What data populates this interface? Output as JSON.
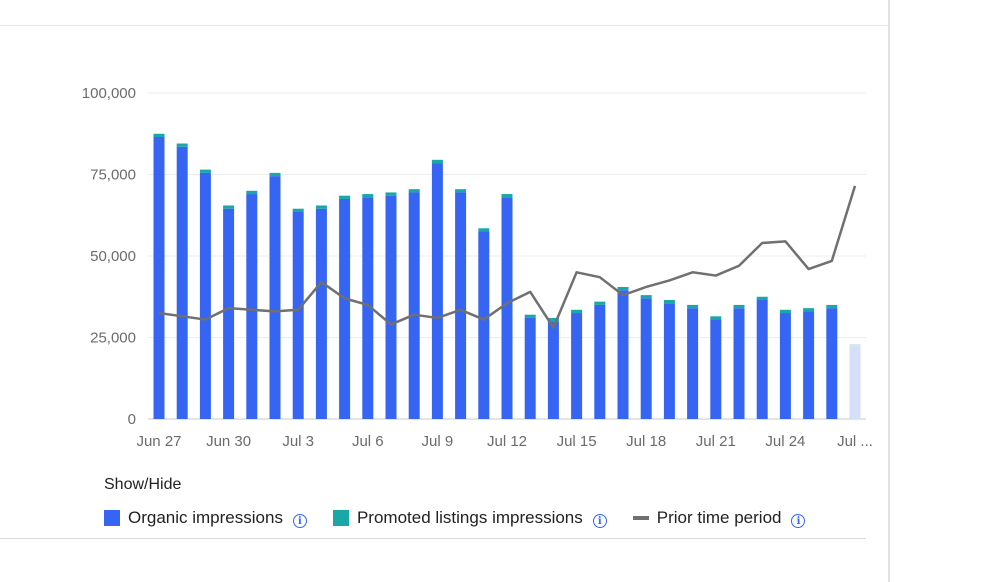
{
  "legend": {
    "title": "Show/Hide",
    "items": [
      {
        "label": "Organic impressions",
        "color": "#3665f3"
      },
      {
        "label": "Promoted listings impressions",
        "color": "#1aa7a7"
      },
      {
        "label": "Prior time period",
        "color": "#707070"
      }
    ],
    "info_icon": "i"
  },
  "chart_data": {
    "type": "bar",
    "stacked": true,
    "ylim": [
      0,
      100000
    ],
    "y_ticks": [
      "100,000",
      "75,000",
      "50,000",
      "25,000",
      "0"
    ],
    "y_tick_values": [
      100000,
      75000,
      50000,
      25000,
      0
    ],
    "x_tick_labels": [
      "Jun 27",
      "Jun 30",
      "Jul 3",
      "Jul 6",
      "Jul 9",
      "Jul 12",
      "Jul 15",
      "Jul 18",
      "Jul 21",
      "Jul 24",
      "Jul ..."
    ],
    "x_tick_indices": [
      0,
      3,
      6,
      9,
      12,
      15,
      18,
      21,
      24,
      27,
      30
    ],
    "grid": true,
    "legend_position": "bottom",
    "series": [
      {
        "name": "Organic impressions",
        "color": "#3665f3",
        "values": [
          86500,
          83500,
          75500,
          64500,
          69000,
          74500,
          63500,
          64500,
          67500,
          68000,
          68500,
          69500,
          78500,
          69500,
          57500,
          68000,
          31000,
          30000,
          32500,
          35000,
          39500,
          37000,
          35500,
          34000,
          30500,
          34000,
          36500,
          32500,
          33000,
          34000,
          22500
        ]
      },
      {
        "name": "Promoted listings impressions",
        "color": "#1aa7a7",
        "values": [
          1000,
          1000,
          1000,
          1000,
          1000,
          1000,
          1000,
          1000,
          1000,
          1000,
          1000,
          1000,
          1000,
          1000,
          1000,
          1000,
          1000,
          1000,
          1000,
          1000,
          1000,
          1000,
          1000,
          1000,
          1000,
          1000,
          1000,
          1000,
          1000,
          1000,
          500
        ]
      },
      {
        "name": "Prior time period",
        "type": "line",
        "color": "#707070",
        "values": [
          32500,
          31500,
          30500,
          34000,
          33500,
          33000,
          33500,
          42000,
          37000,
          35000,
          29000,
          32000,
          31000,
          33500,
          30500,
          35500,
          39000,
          28000,
          45000,
          43500,
          38000,
          40500,
          42500,
          45000,
          44000,
          47000,
          54000,
          54500,
          46000,
          48500,
          71500
        ]
      }
    ],
    "last_bar_partial": true,
    "partial_color": "#d4e0f7"
  }
}
